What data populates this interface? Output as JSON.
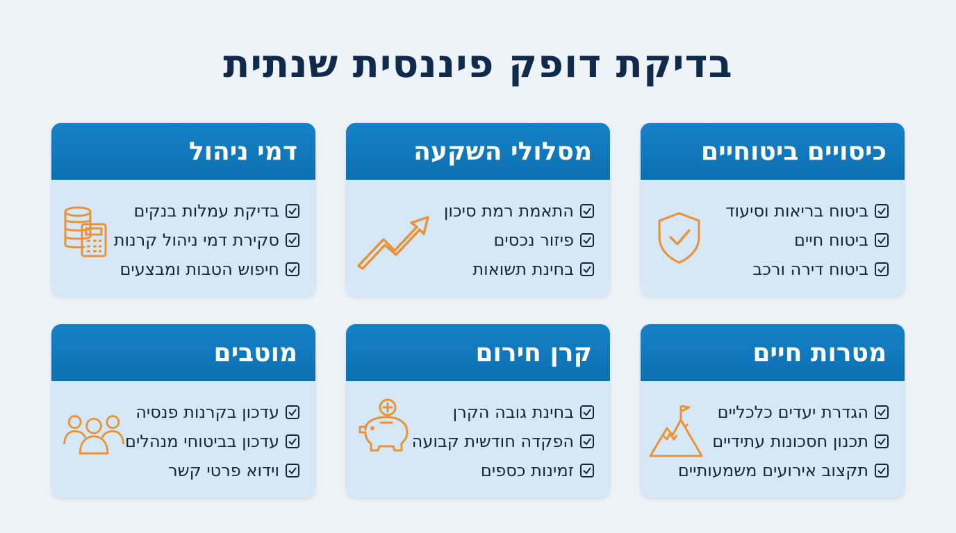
{
  "title": "בדיקת דופק פיננסית שנתית",
  "colors": {
    "header_blue": "#1582c8",
    "card_bg": "#d6e8f5",
    "accent_orange": "#e8923a",
    "title_navy": "#0f2a4a"
  },
  "cards": [
    {
      "title": "כיסויים ביטוחיים",
      "icon": "shield-check-icon",
      "items": [
        "ביטוח בריאות וסיעוד",
        "ביטוח חיים",
        "ביטוח דירה ורכב"
      ]
    },
    {
      "title": "מסלולי השקעה",
      "icon": "trend-up-arrow-icon",
      "items": [
        "התאמת רמת סיכון",
        "פיזור נכסים",
        "בחינת תשואות"
      ]
    },
    {
      "title": "דמי ניהול",
      "icon": "coins-calculator-icon",
      "items": [
        "בדיקת עמלות בנקים",
        "סקירת דמי ניהול קרנות",
        "חיפוש הטבות ומבצעים"
      ]
    },
    {
      "title": "מטרות חיים",
      "icon": "mountain-flag-icon",
      "items": [
        "הגדרת יעדים כלכליים",
        "תכנון חסכונות עתידיים",
        "תקצוב אירועים משמעותיים"
      ]
    },
    {
      "title": "קרן חירום",
      "icon": "piggy-bank-icon",
      "items": [
        "בחינת גובה הקרן",
        "הפקדה חודשית קבועה",
        "זמינות כספים"
      ]
    },
    {
      "title": "מוטבים",
      "icon": "people-group-icon",
      "items": [
        "עדכון בקרנות פנסיה",
        "עדכון בביטוחי מנהלים",
        "וידוא פרטי קשר"
      ]
    }
  ]
}
